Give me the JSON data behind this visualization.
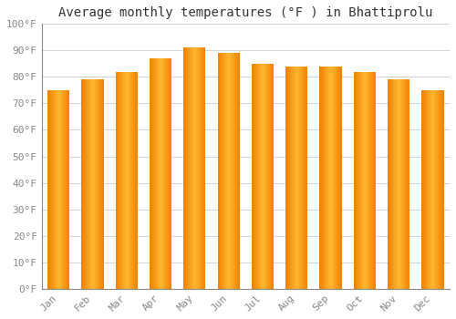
{
  "title": "Average monthly temperatures (°F ) in Bhattiprolu",
  "months": [
    "Jan",
    "Feb",
    "Mar",
    "Apr",
    "May",
    "Jun",
    "Jul",
    "Aug",
    "Sep",
    "Oct",
    "Nov",
    "Dec"
  ],
  "values": [
    75,
    79,
    82,
    87,
    91,
    89,
    85,
    84,
    84,
    82,
    79,
    75
  ],
  "ylim": [
    0,
    100
  ],
  "yticks": [
    0,
    10,
    20,
    30,
    40,
    50,
    60,
    70,
    80,
    90,
    100
  ],
  "ytick_labels": [
    "0°F",
    "10°F",
    "20°F",
    "30°F",
    "40°F",
    "50°F",
    "60°F",
    "70°F",
    "80°F",
    "90°F",
    "100°F"
  ],
  "bar_color_center": "#FFB733",
  "bar_color_edge": "#F08000",
  "background_color": "#FFFFFF",
  "grid_color": "#CCCCCC",
  "title_fontsize": 10,
  "tick_fontsize": 8,
  "font_color": "#888888",
  "bar_width": 0.65
}
